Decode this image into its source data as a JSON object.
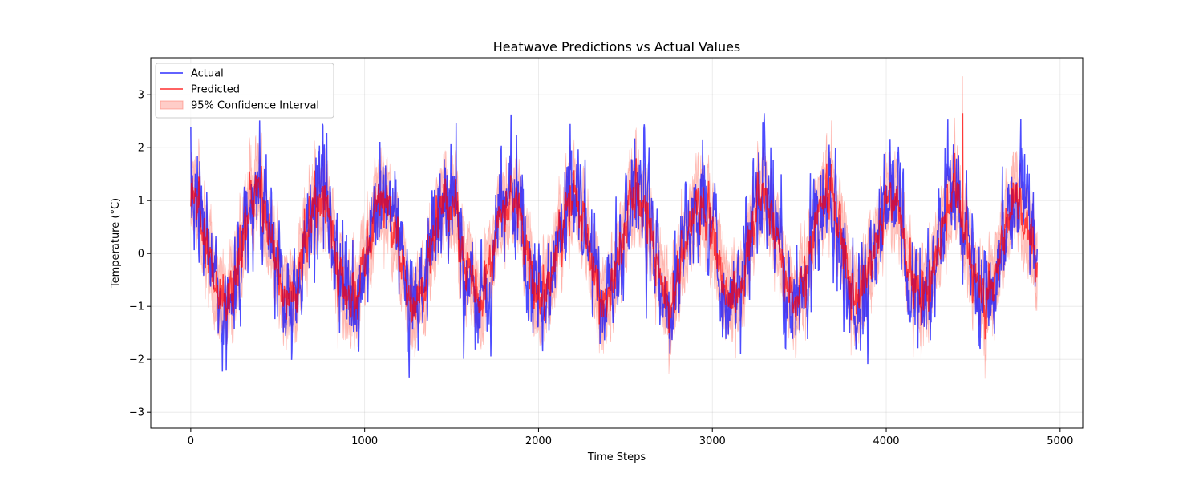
{
  "chart_data": {
    "type": "line",
    "title": "Heatwave Predictions vs Actual Values",
    "xlabel": "Time Steps",
    "ylabel": "Temperature (°C)",
    "xlim": [
      -230,
      5130
    ],
    "ylim": [
      -3.3,
      3.7
    ],
    "x_ticks": [
      0,
      1000,
      2000,
      3000,
      4000,
      5000
    ],
    "x_tick_labels": [
      "0",
      "1000",
      "2000",
      "3000",
      "4000",
      "5000"
    ],
    "y_ticks": [
      -3,
      -2,
      -1,
      0,
      1,
      2,
      3
    ],
    "y_tick_labels": [
      "−3",
      "−2",
      "−1",
      "0",
      "1",
      "2",
      "3"
    ],
    "grid": true,
    "legend_position": "top-left",
    "n_points": 4870,
    "series": [
      {
        "name": "Actual",
        "color": "#0000ff",
        "kind": "line",
        "approx_shape": {
          "mean": 0.1,
          "seasonal_amplitude": 1.05,
          "period": 365,
          "noise_sd": 0.45,
          "min": -3.0,
          "max": 2.65
        }
      },
      {
        "name": "Predicted",
        "color": "#ff0000",
        "kind": "line",
        "approx_shape": {
          "mean": 0.1,
          "seasonal_amplitude": 1.0,
          "period": 365,
          "noise_sd": 0.2,
          "spike": {
            "x": 4440,
            "y": 2.65
          }
        }
      },
      {
        "name": "95% Confidence Interval",
        "color": "#ff6f61",
        "kind": "band",
        "approx_shape": {
          "half_width": 0.55,
          "spike": {
            "x": 4440,
            "upper": 3.35
          }
        }
      }
    ]
  }
}
